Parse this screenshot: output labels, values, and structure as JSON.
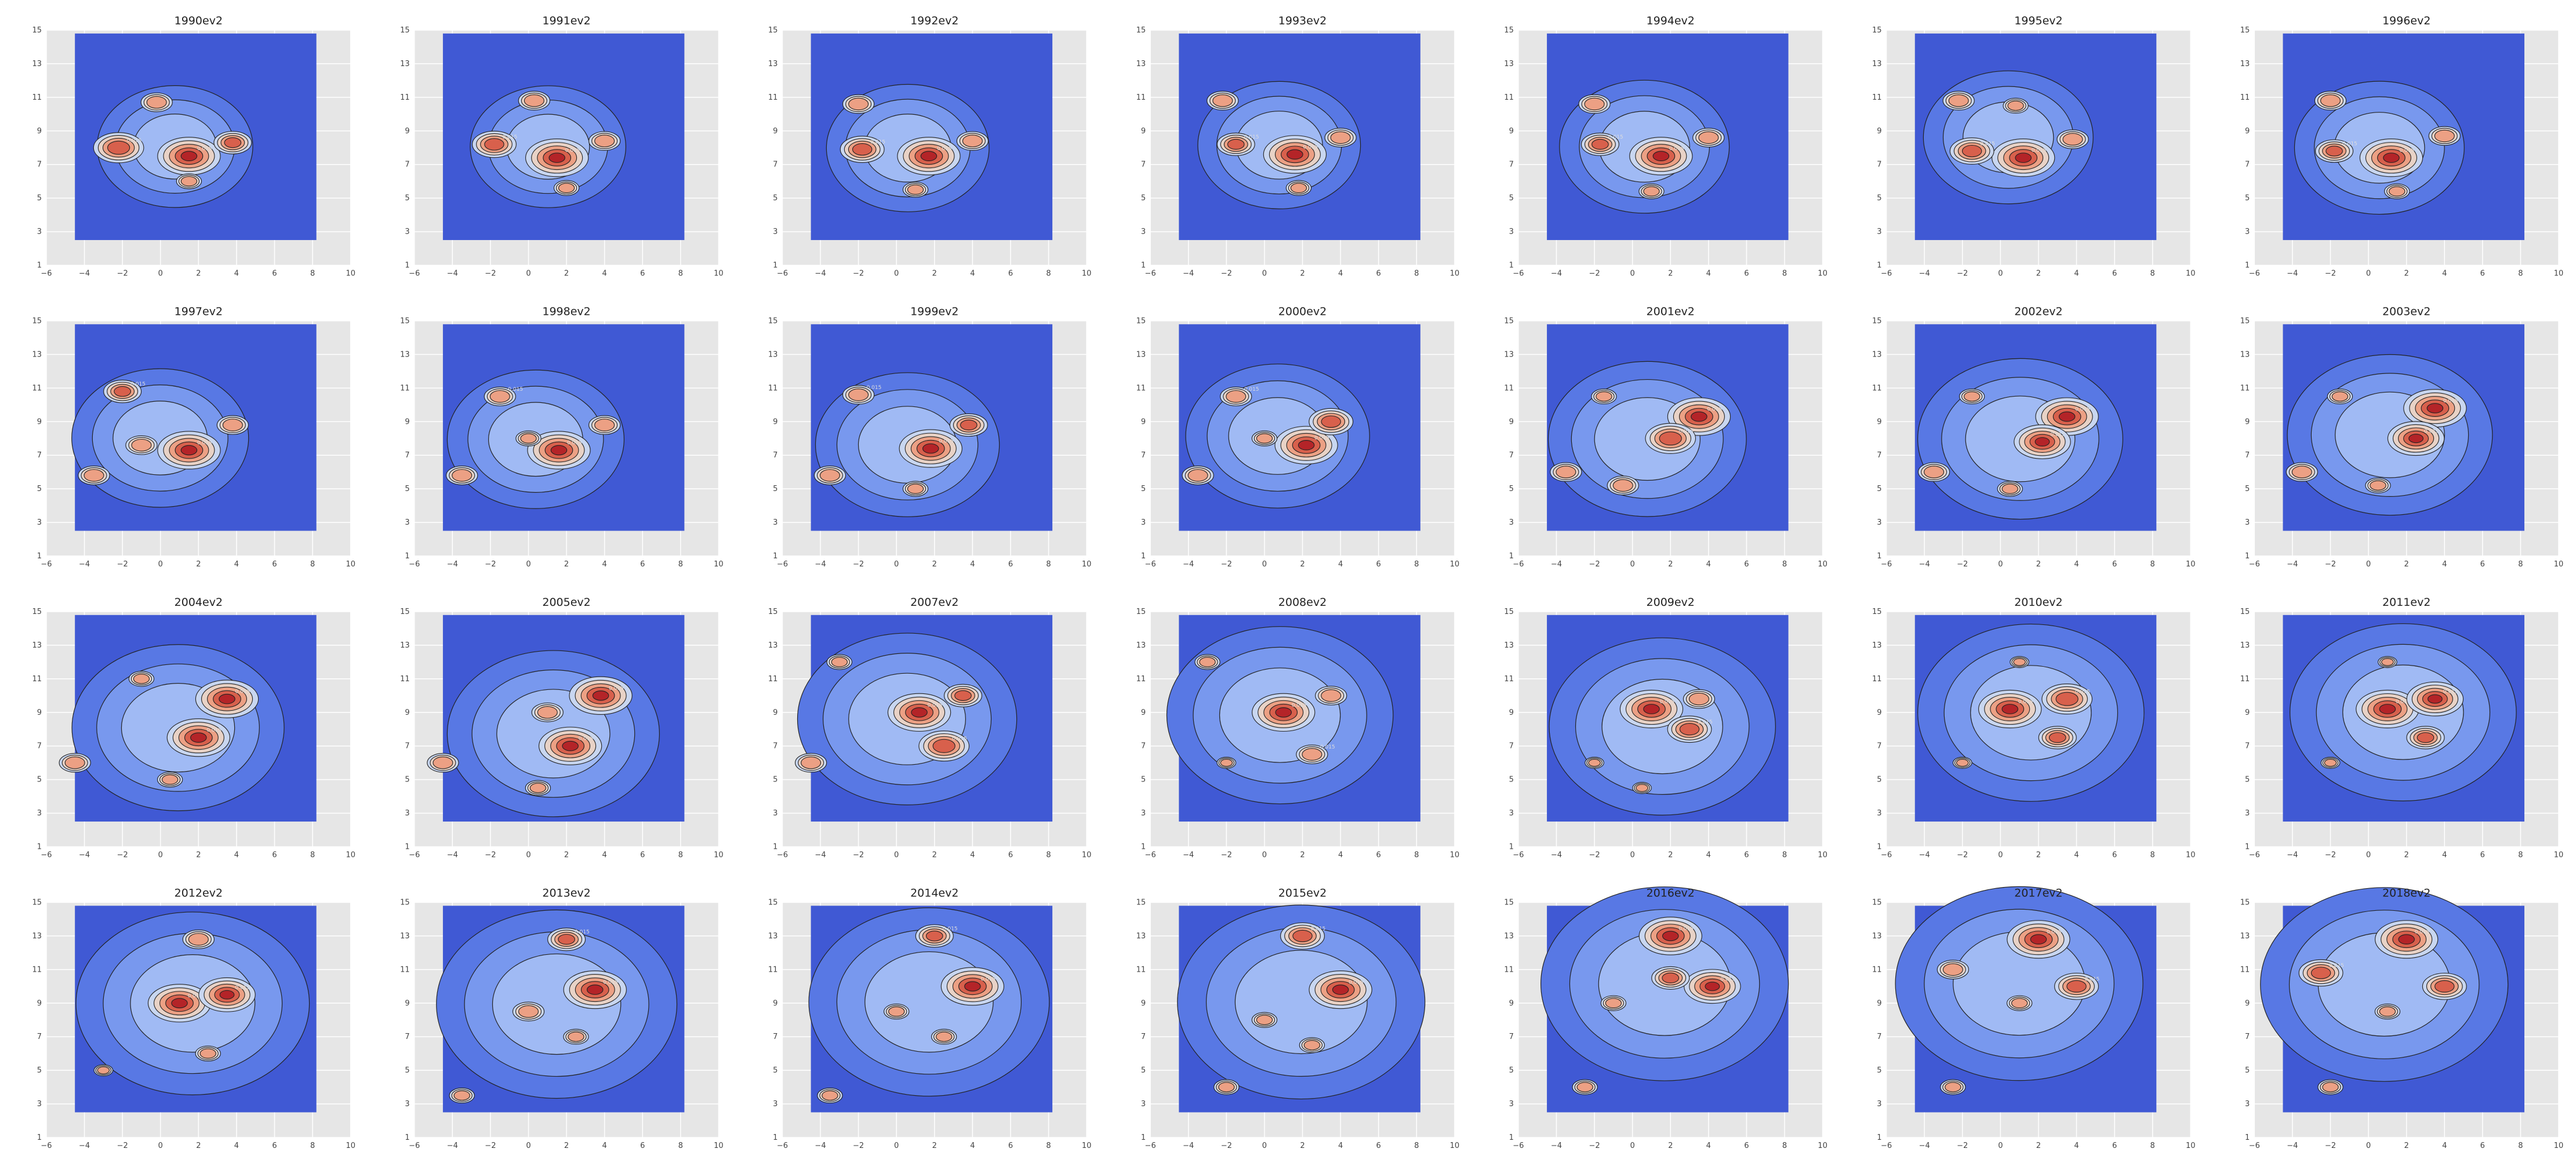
{
  "chart_data": {
    "type": "contour",
    "layout": {
      "rows": 4,
      "cols": 7
    },
    "colors": {
      "background": "#4059d4",
      "panel": "#e6e6e6",
      "grid": "#ffffff",
      "contour_line": "#222222"
    },
    "contour_label": "0.015",
    "xticks": [
      -6,
      -4,
      -2,
      0,
      2,
      4,
      6,
      8,
      10
    ],
    "yticks": [
      1,
      3,
      5,
      7,
      9,
      11,
      13,
      15
    ],
    "xlim": [
      -6,
      10
    ],
    "ylim": [
      1,
      15
    ],
    "plots": [
      {
        "title": "1990ev2",
        "hot": [
          [
            1.5,
            7.5,
            1.0
          ],
          [
            -2.2,
            8.0,
            0.8
          ],
          [
            3.8,
            8.3,
            0.6
          ],
          [
            -0.2,
            10.7,
            0.5
          ],
          [
            1.5,
            6.0,
            0.4
          ]
        ],
        "spread": 2.2
      },
      {
        "title": "1991ev2",
        "hot": [
          [
            1.5,
            7.4,
            1.0
          ],
          [
            -1.8,
            8.2,
            0.7
          ],
          [
            4.0,
            8.4,
            0.5
          ],
          [
            0.3,
            10.8,
            0.5
          ],
          [
            2.0,
            5.6,
            0.4
          ]
        ],
        "spread": 2.2
      },
      {
        "title": "1992ev2",
        "hot": [
          [
            1.7,
            7.5,
            1.0
          ],
          [
            -1.8,
            7.9,
            0.7
          ],
          [
            -2.0,
            10.6,
            0.5
          ],
          [
            4.0,
            8.4,
            0.5
          ],
          [
            1.0,
            5.5,
            0.4
          ]
        ],
        "spread": 2.3
      },
      {
        "title": "1993ev2",
        "hot": [
          [
            1.6,
            7.6,
            1.0
          ],
          [
            -1.5,
            8.2,
            0.6
          ],
          [
            -2.2,
            10.8,
            0.5
          ],
          [
            4.0,
            8.6,
            0.5
          ],
          [
            1.8,
            5.6,
            0.4
          ]
        ],
        "spread": 2.3
      },
      {
        "title": "1994ev2",
        "hot": [
          [
            1.5,
            7.5,
            1.0
          ],
          [
            -1.7,
            8.2,
            0.6
          ],
          [
            -2.0,
            10.6,
            0.5
          ],
          [
            4.0,
            8.6,
            0.5
          ],
          [
            1.0,
            5.4,
            0.4
          ]
        ],
        "spread": 2.4
      },
      {
        "title": "1995ev2",
        "hot": [
          [
            1.2,
            7.4,
            1.0
          ],
          [
            -1.5,
            7.8,
            0.7
          ],
          [
            -2.2,
            10.8,
            0.5
          ],
          [
            3.8,
            8.5,
            0.5
          ],
          [
            0.8,
            10.5,
            0.4
          ]
        ],
        "spread": 2.4
      },
      {
        "title": "1996ev2",
        "hot": [
          [
            1.2,
            7.4,
            1.0
          ],
          [
            -1.8,
            7.8,
            0.6
          ],
          [
            -2.0,
            10.8,
            0.5
          ],
          [
            4.0,
            8.7,
            0.5
          ],
          [
            1.5,
            5.4,
            0.4
          ]
        ],
        "spread": 2.4
      },
      {
        "title": "1997ev2",
        "hot": [
          [
            1.5,
            7.3,
            1.0
          ],
          [
            -2.0,
            10.8,
            0.6
          ],
          [
            -3.5,
            5.8,
            0.5
          ],
          [
            3.8,
            8.8,
            0.5
          ],
          [
            -1.0,
            7.6,
            0.5
          ]
        ],
        "spread": 2.5
      },
      {
        "title": "1998ev2",
        "hot": [
          [
            1.6,
            7.3,
            1.0
          ],
          [
            -1.5,
            10.5,
            0.5
          ],
          [
            -3.5,
            5.8,
            0.5
          ],
          [
            4.0,
            8.8,
            0.5
          ],
          [
            0.0,
            8.0,
            0.4
          ]
        ],
        "spread": 2.5
      },
      {
        "title": "1999ev2",
        "hot": [
          [
            1.8,
            7.4,
            1.0
          ],
          [
            -2.0,
            10.6,
            0.5
          ],
          [
            -3.5,
            5.8,
            0.5
          ],
          [
            3.8,
            8.8,
            0.6
          ],
          [
            1.0,
            5.0,
            0.4
          ]
        ],
        "spread": 2.6
      },
      {
        "title": "2000ev2",
        "hot": [
          [
            2.2,
            7.6,
            1.0
          ],
          [
            -1.5,
            10.5,
            0.5
          ],
          [
            -3.5,
            5.8,
            0.5
          ],
          [
            3.5,
            9.0,
            0.7
          ],
          [
            0.0,
            8.0,
            0.4
          ]
        ],
        "spread": 2.6
      },
      {
        "title": "2001ev2",
        "hot": [
          [
            3.5,
            9.3,
            1.0
          ],
          [
            2.0,
            8.0,
            0.8
          ],
          [
            -0.5,
            5.2,
            0.5
          ],
          [
            -3.5,
            6.0,
            0.5
          ],
          [
            -1.5,
            10.5,
            0.4
          ]
        ],
        "spread": 2.8
      },
      {
        "title": "2002ev2",
        "hot": [
          [
            3.5,
            9.3,
            1.0
          ],
          [
            2.2,
            7.8,
            0.9
          ],
          [
            -3.5,
            6.0,
            0.5
          ],
          [
            0.5,
            5.0,
            0.4
          ],
          [
            -1.5,
            10.5,
            0.4
          ]
        ],
        "spread": 2.9
      },
      {
        "title": "2003ev2",
        "hot": [
          [
            3.5,
            9.8,
            1.0
          ],
          [
            2.5,
            8.0,
            0.9
          ],
          [
            -3.5,
            6.0,
            0.5
          ],
          [
            0.5,
            5.2,
            0.4
          ],
          [
            -1.5,
            10.5,
            0.4
          ]
        ],
        "spread": 2.9
      },
      {
        "title": "2004ev2",
        "hot": [
          [
            3.5,
            9.8,
            1.0
          ],
          [
            2.0,
            7.5,
            1.0
          ],
          [
            -4.5,
            6.0,
            0.5
          ],
          [
            0.5,
            5.0,
            0.4
          ],
          [
            -1.0,
            11.0,
            0.4
          ]
        ],
        "spread": 3.0
      },
      {
        "title": "2005ev2",
        "hot": [
          [
            3.8,
            10.0,
            1.0
          ],
          [
            2.2,
            7.0,
            1.0
          ],
          [
            -4.5,
            6.0,
            0.5
          ],
          [
            1.0,
            9.0,
            0.5
          ],
          [
            0.5,
            4.5,
            0.4
          ]
        ],
        "spread": 3.0
      },
      {
        "title": "2007ev2",
        "hot": [
          [
            1.2,
            9.0,
            1.0
          ],
          [
            2.5,
            7.0,
            0.8
          ],
          [
            3.5,
            10.0,
            0.6
          ],
          [
            -4.5,
            6.0,
            0.5
          ],
          [
            -3.0,
            12.0,
            0.4
          ]
        ],
        "spread": 3.1
      },
      {
        "title": "2008ev2",
        "hot": [
          [
            1.0,
            9.0,
            1.0
          ],
          [
            2.5,
            6.5,
            0.5
          ],
          [
            3.5,
            10.0,
            0.5
          ],
          [
            -3.0,
            12.0,
            0.4
          ],
          [
            -2.0,
            6.0,
            0.3
          ]
        ],
        "spread": 3.2
      },
      {
        "title": "2009ev2",
        "hot": [
          [
            1.0,
            9.2,
            1.0
          ],
          [
            3.0,
            8.0,
            0.7
          ],
          [
            3.5,
            9.8,
            0.5
          ],
          [
            -2.0,
            6.0,
            0.3
          ],
          [
            0.5,
            4.5,
            0.3
          ]
        ],
        "spread": 3.2
      },
      {
        "title": "2010ev2",
        "hot": [
          [
            0.5,
            9.2,
            1.0
          ],
          [
            3.5,
            9.8,
            0.8
          ],
          [
            3.0,
            7.5,
            0.6
          ],
          [
            -2.0,
            6.0,
            0.3
          ],
          [
            1.0,
            12.0,
            0.3
          ]
        ],
        "spread": 3.2
      },
      {
        "title": "2011ev2",
        "hot": [
          [
            1.0,
            9.2,
            1.0
          ],
          [
            3.5,
            9.8,
            0.9
          ],
          [
            3.0,
            7.5,
            0.6
          ],
          [
            -2.0,
            6.0,
            0.3
          ],
          [
            1.0,
            12.0,
            0.3
          ]
        ],
        "spread": 3.2
      },
      {
        "title": "2012ev2",
        "hot": [
          [
            1.0,
            9.0,
            1.0
          ],
          [
            3.5,
            9.5,
            0.9
          ],
          [
            2.0,
            12.8,
            0.5
          ],
          [
            -3.0,
            5.0,
            0.3
          ],
          [
            2.5,
            6.0,
            0.4
          ]
        ],
        "spread": 3.3
      },
      {
        "title": "2013ev2",
        "hot": [
          [
            3.5,
            9.8,
            1.0
          ],
          [
            2.0,
            12.8,
            0.6
          ],
          [
            0.0,
            8.5,
            0.5
          ],
          [
            -3.5,
            3.5,
            0.4
          ],
          [
            2.5,
            7.0,
            0.4
          ]
        ],
        "spread": 3.4
      },
      {
        "title": "2014ev2",
        "hot": [
          [
            4.0,
            10.0,
            1.0
          ],
          [
            2.0,
            13.0,
            0.6
          ],
          [
            0.0,
            8.5,
            0.4
          ],
          [
            -3.5,
            3.5,
            0.4
          ],
          [
            2.5,
            7.0,
            0.4
          ]
        ],
        "spread": 3.4
      },
      {
        "title": "2015ev2",
        "hot": [
          [
            4.0,
            9.8,
            1.0
          ],
          [
            2.0,
            13.0,
            0.7
          ],
          [
            -2.0,
            4.0,
            0.4
          ],
          [
            0.0,
            8.0,
            0.4
          ],
          [
            2.5,
            6.5,
            0.4
          ]
        ],
        "spread": 3.5
      },
      {
        "title": "2016ev2",
        "hot": [
          [
            2.0,
            13.0,
            1.0
          ],
          [
            4.2,
            10.0,
            0.9
          ],
          [
            2.0,
            10.5,
            0.6
          ],
          [
            -2.5,
            4.0,
            0.4
          ],
          [
            -1.0,
            9.0,
            0.4
          ]
        ],
        "spread": 3.5
      },
      {
        "title": "2017ev2",
        "hot": [
          [
            2.0,
            12.8,
            1.0
          ],
          [
            4.0,
            10.0,
            0.7
          ],
          [
            -2.5,
            11.0,
            0.5
          ],
          [
            -2.5,
            4.0,
            0.4
          ],
          [
            1.0,
            9.0,
            0.4
          ]
        ],
        "spread": 3.5
      },
      {
        "title": "2018ev2",
        "hot": [
          [
            2.0,
            12.8,
            1.0
          ],
          [
            -2.5,
            10.8,
            0.7
          ],
          [
            4.0,
            10.0,
            0.7
          ],
          [
            -2.0,
            4.0,
            0.4
          ],
          [
            1.0,
            8.5,
            0.4
          ]
        ],
        "spread": 3.5
      }
    ]
  }
}
